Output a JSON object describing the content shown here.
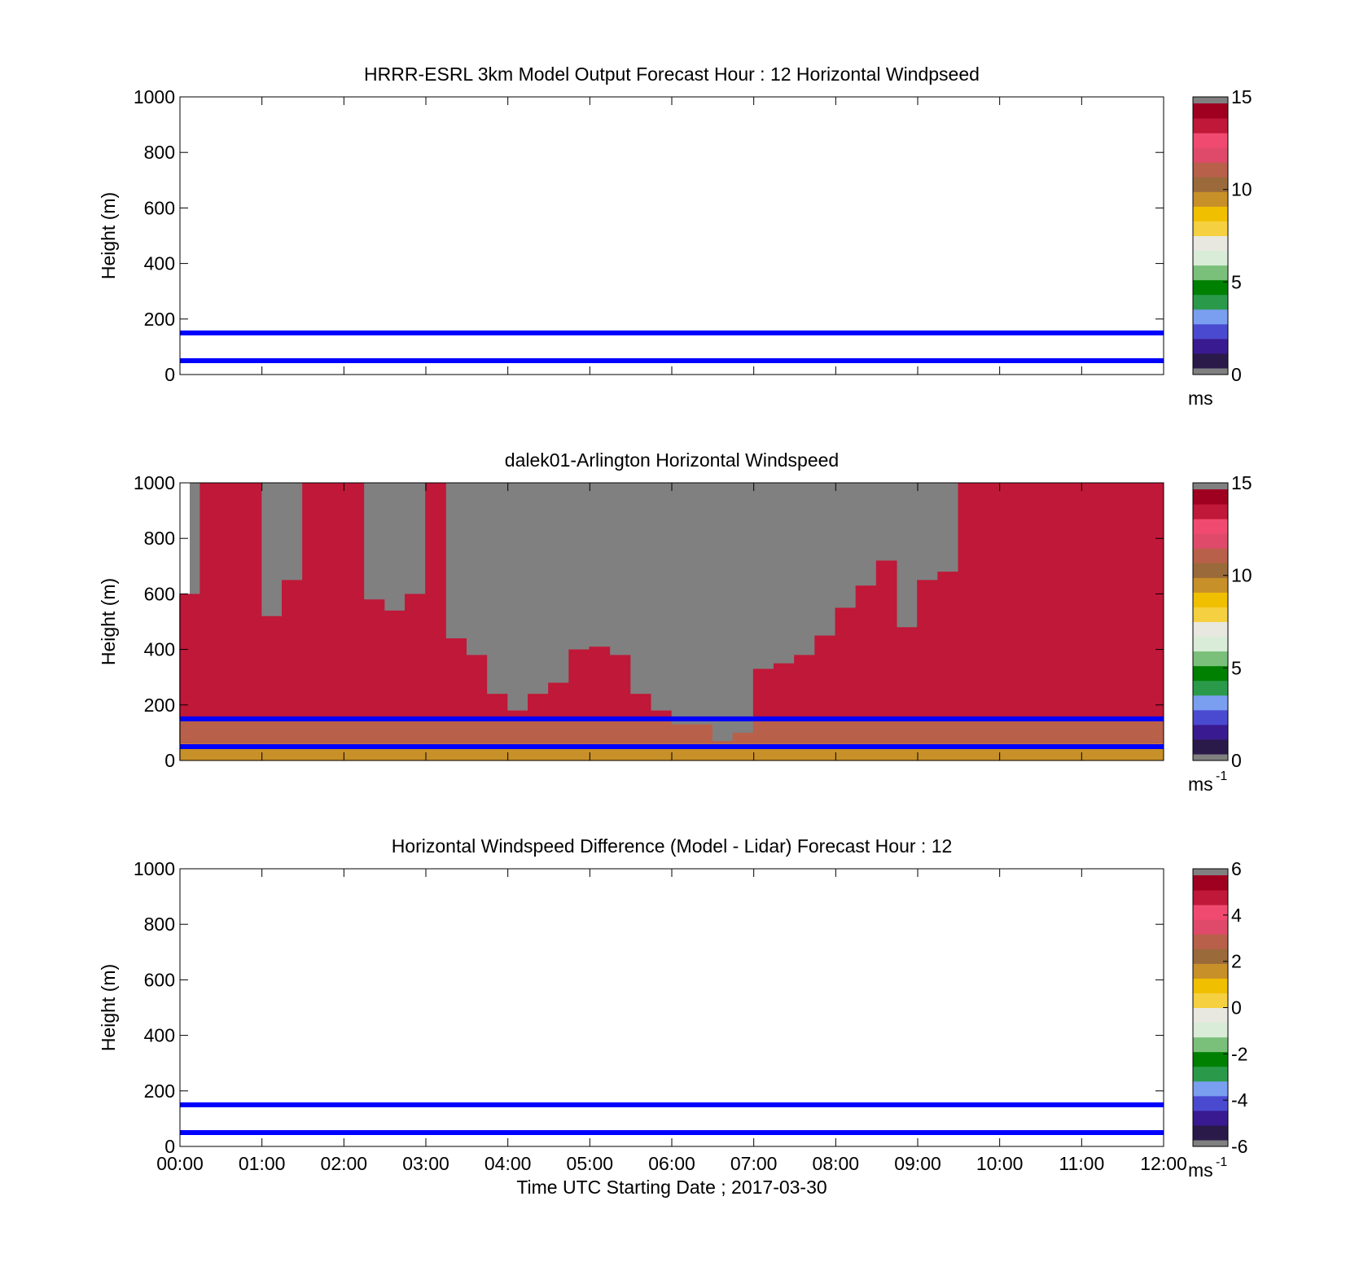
{
  "figure": {
    "time_axis": {
      "ticks": [
        "00:00",
        "01:00",
        "02:00",
        "03:00",
        "04:00",
        "05:00",
        "06:00",
        "07:00",
        "08:00",
        "09:00",
        "10:00",
        "11:00",
        "12:00"
      ],
      "label": "Time UTC  Starting Date ; 2017-03-30"
    },
    "height_axis": {
      "label": "Height (m)",
      "ticks": [
        "0",
        "200",
        "400",
        "600",
        "800",
        "1000"
      ]
    }
  },
  "colors": {
    "reference_lines": "#0000ff",
    "no_data": "#808080",
    "colormap": [
      "#2a1a4a",
      "#3a1a90",
      "#4a4ad0",
      "#7a9ef0",
      "#2a9a4a",
      "#008000",
      "#7ac07a",
      "#d8ecd8",
      "#e8e8e0",
      "#f5d040",
      "#f0c000",
      "#c89028",
      "#9a6a3a",
      "#b8604a",
      "#e04a6a",
      "#f04a70",
      "#c01838",
      "#a00020"
    ]
  },
  "chart_data": [
    {
      "type": "heatmap",
      "title": "HRRR-ESRL 3km Model Output   Forecast Hour : 12 Horizontal Windpseed",
      "ylabel": "Height (m)",
      "xlim": [
        "00:00",
        "12:00"
      ],
      "ylim": [
        0,
        1000
      ],
      "reference_lines_m": [
        50,
        150
      ],
      "colorbar": {
        "ticks": [
          "0",
          "5",
          "10",
          "15"
        ],
        "range": [
          0,
          15
        ],
        "unit": "ms",
        "unit_sup": ""
      },
      "cells": []
    },
    {
      "type": "heatmap",
      "title": "dalek01-Arlington  Horizontal Windspeed",
      "ylabel": "Height (m)",
      "xlim": [
        "00:00",
        "12:00"
      ],
      "ylim": [
        0,
        1000
      ],
      "reference_lines_m": [
        50,
        150
      ],
      "colorbar": {
        "ticks": [
          "0",
          "5",
          "10",
          "15"
        ],
        "range": [
          0,
          15
        ],
        "unit": "ms",
        "unit_sup": "-1"
      },
      "profile_times": [
        "00:07",
        "00:22",
        "00:37",
        "00:52",
        "01:07",
        "01:22",
        "01:37",
        "01:52",
        "02:07",
        "02:22",
        "02:37",
        "02:52",
        "03:07",
        "03:22",
        "03:37",
        "03:52",
        "04:07",
        "04:22",
        "04:37",
        "04:52",
        "05:07",
        "05:22",
        "05:37",
        "05:52",
        "06:07",
        "06:22",
        "06:37",
        "06:52",
        "07:07",
        "07:22",
        "07:37",
        "07:52",
        "08:07",
        "08:22",
        "08:37",
        "08:52",
        "09:07",
        "09:22",
        "09:37",
        "09:52",
        "10:07",
        "10:22",
        "10:37",
        "10:52",
        "11:07",
        "11:22",
        "11:37",
        "11:52"
      ],
      "profile_tops_m": [
        600,
        1000,
        1000,
        1000,
        520,
        650,
        1000,
        1000,
        1000,
        580,
        540,
        600,
        1000,
        440,
        380,
        240,
        180,
        240,
        280,
        400,
        410,
        380,
        240,
        180,
        130,
        130,
        70,
        100,
        330,
        350,
        380,
        450,
        550,
        630,
        720,
        480,
        650,
        680,
        1000,
        1000,
        1000,
        1000,
        1000,
        1000,
        1000,
        1000,
        1000,
        1000
      ],
      "speed_bands_ms": [
        {
          "below_m": 60,
          "speed_ms": 9.5
        },
        {
          "below_m": 150,
          "speed_ms": 11.5
        },
        {
          "below_m": 1000,
          "speed_ms": 13.5
        }
      ]
    },
    {
      "type": "heatmap",
      "title": "Horizontal Windspeed Difference (Model - Lidar) Forecast Hour : 12",
      "ylabel": "Height (m)",
      "xlabel": "Time UTC  Starting Date ; 2017-03-30",
      "xlim": [
        "00:00",
        "12:00"
      ],
      "ylim": [
        0,
        1000
      ],
      "reference_lines_m": [
        50,
        150
      ],
      "colorbar": {
        "ticks": [
          "-6",
          "-4",
          "-2",
          "0",
          "2",
          "4",
          "6"
        ],
        "range": [
          -6,
          6
        ],
        "unit": "ms",
        "unit_sup": "-1"
      },
      "cells": []
    }
  ]
}
